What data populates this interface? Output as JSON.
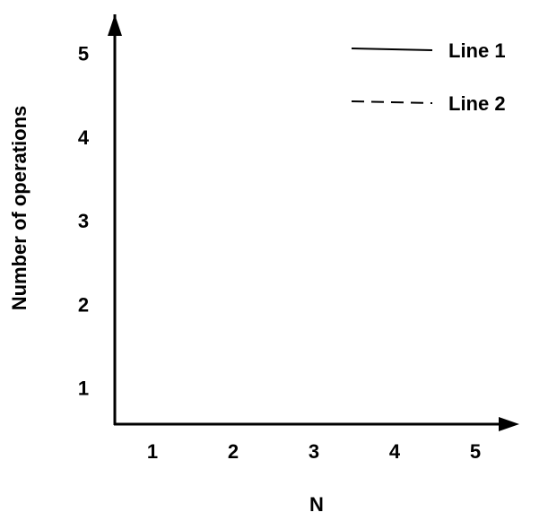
{
  "chart_data": {
    "type": "line",
    "xlabel": "N",
    "ylabel": "Number of operations",
    "xlim": [
      0.5,
      5.5
    ],
    "xticks": [
      1,
      2,
      3,
      4,
      5
    ],
    "ylim": [
      0.6,
      5.4
    ],
    "yticks": [
      1,
      2,
      3,
      4,
      5
    ],
    "x": [],
    "series": [
      {
        "name": "Line 1",
        "color": "#000000",
        "dash": "solid",
        "values": []
      },
      {
        "name": "Line 2",
        "color": "#000000",
        "dash": "dashed",
        "values": []
      }
    ],
    "legend": "top-right",
    "grid": false
  }
}
